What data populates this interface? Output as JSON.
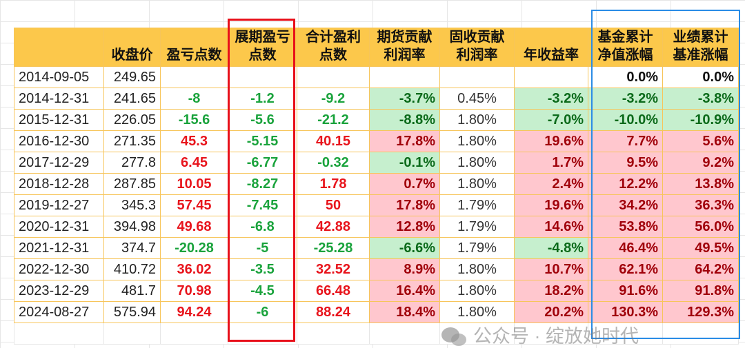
{
  "headers": [
    "",
    "收盘价",
    "盈亏点数",
    "展期盈亏\n点数",
    "合计盈利\n点数",
    "期货贡献\n利润率",
    "固收贡献\n利润率",
    "年收益率",
    "基金累计\n净值涨幅",
    "业绩累计\n基准涨幅"
  ],
  "rows": [
    [
      "2014-09-05",
      "249.65",
      "",
      "",
      "",
      "",
      "",
      "",
      "0.0%",
      "0.0%"
    ],
    [
      "2014-12-31",
      "241.65",
      "-8",
      "-1.2",
      "-9.2",
      "-3.7%",
      "0.45%",
      "-3.2%",
      "-3.2%",
      "-3.8%"
    ],
    [
      "2015-12-31",
      "226.05",
      "-15.6",
      "-5.6",
      "-21.2",
      "-8.8%",
      "1.80%",
      "-7.0%",
      "-10.0%",
      "-10.9%"
    ],
    [
      "2016-12-30",
      "271.35",
      "45.3",
      "-5.15",
      "40.15",
      "17.8%",
      "1.80%",
      "19.6%",
      "7.7%",
      "5.6%"
    ],
    [
      "2017-12-29",
      "277.8",
      "6.45",
      "-6.77",
      "-0.32",
      "-0.1%",
      "1.80%",
      "1.7%",
      "9.5%",
      "9.2%"
    ],
    [
      "2018-12-28",
      "287.85",
      "10.05",
      "-8.27",
      "1.78",
      "0.7%",
      "1.80%",
      "2.4%",
      "12.2%",
      "13.8%"
    ],
    [
      "2019-12-27",
      "345.3",
      "57.45",
      "-7.45",
      "50",
      "17.8%",
      "1.79%",
      "19.6%",
      "34.2%",
      "36.3%"
    ],
    [
      "2020-12-31",
      "394.98",
      "49.68",
      "-6.8",
      "42.88",
      "12.8%",
      "1.79%",
      "14.6%",
      "53.8%",
      "56.0%"
    ],
    [
      "2021-12-31",
      "374.7",
      "-20.28",
      "-5",
      "-25.28",
      "-6.6%",
      "1.79%",
      "-4.8%",
      "46.4%",
      "49.5%"
    ],
    [
      "2022-12-30",
      "410.72",
      "36.02",
      "-3.5",
      "32.52",
      "8.9%",
      "1.80%",
      "10.7%",
      "62.1%",
      "64.2%"
    ],
    [
      "2023-12-29",
      "481.7",
      "70.98",
      "-4.5",
      "66.48",
      "16.4%",
      "1.80%",
      "18.2%",
      "91.6%",
      "91.8%"
    ],
    [
      "2024-08-27",
      "575.94",
      "94.24",
      "-6",
      "88.24",
      "18.4%",
      "1.80%",
      "20.2%",
      "130.3%",
      "129.3%"
    ]
  ],
  "watermark": "公众号 · 绽放她时代",
  "colors": {
    "header": "#fcc84b",
    "highlight_red": "#e8101a",
    "highlight_blue": "#2a8ce6"
  }
}
